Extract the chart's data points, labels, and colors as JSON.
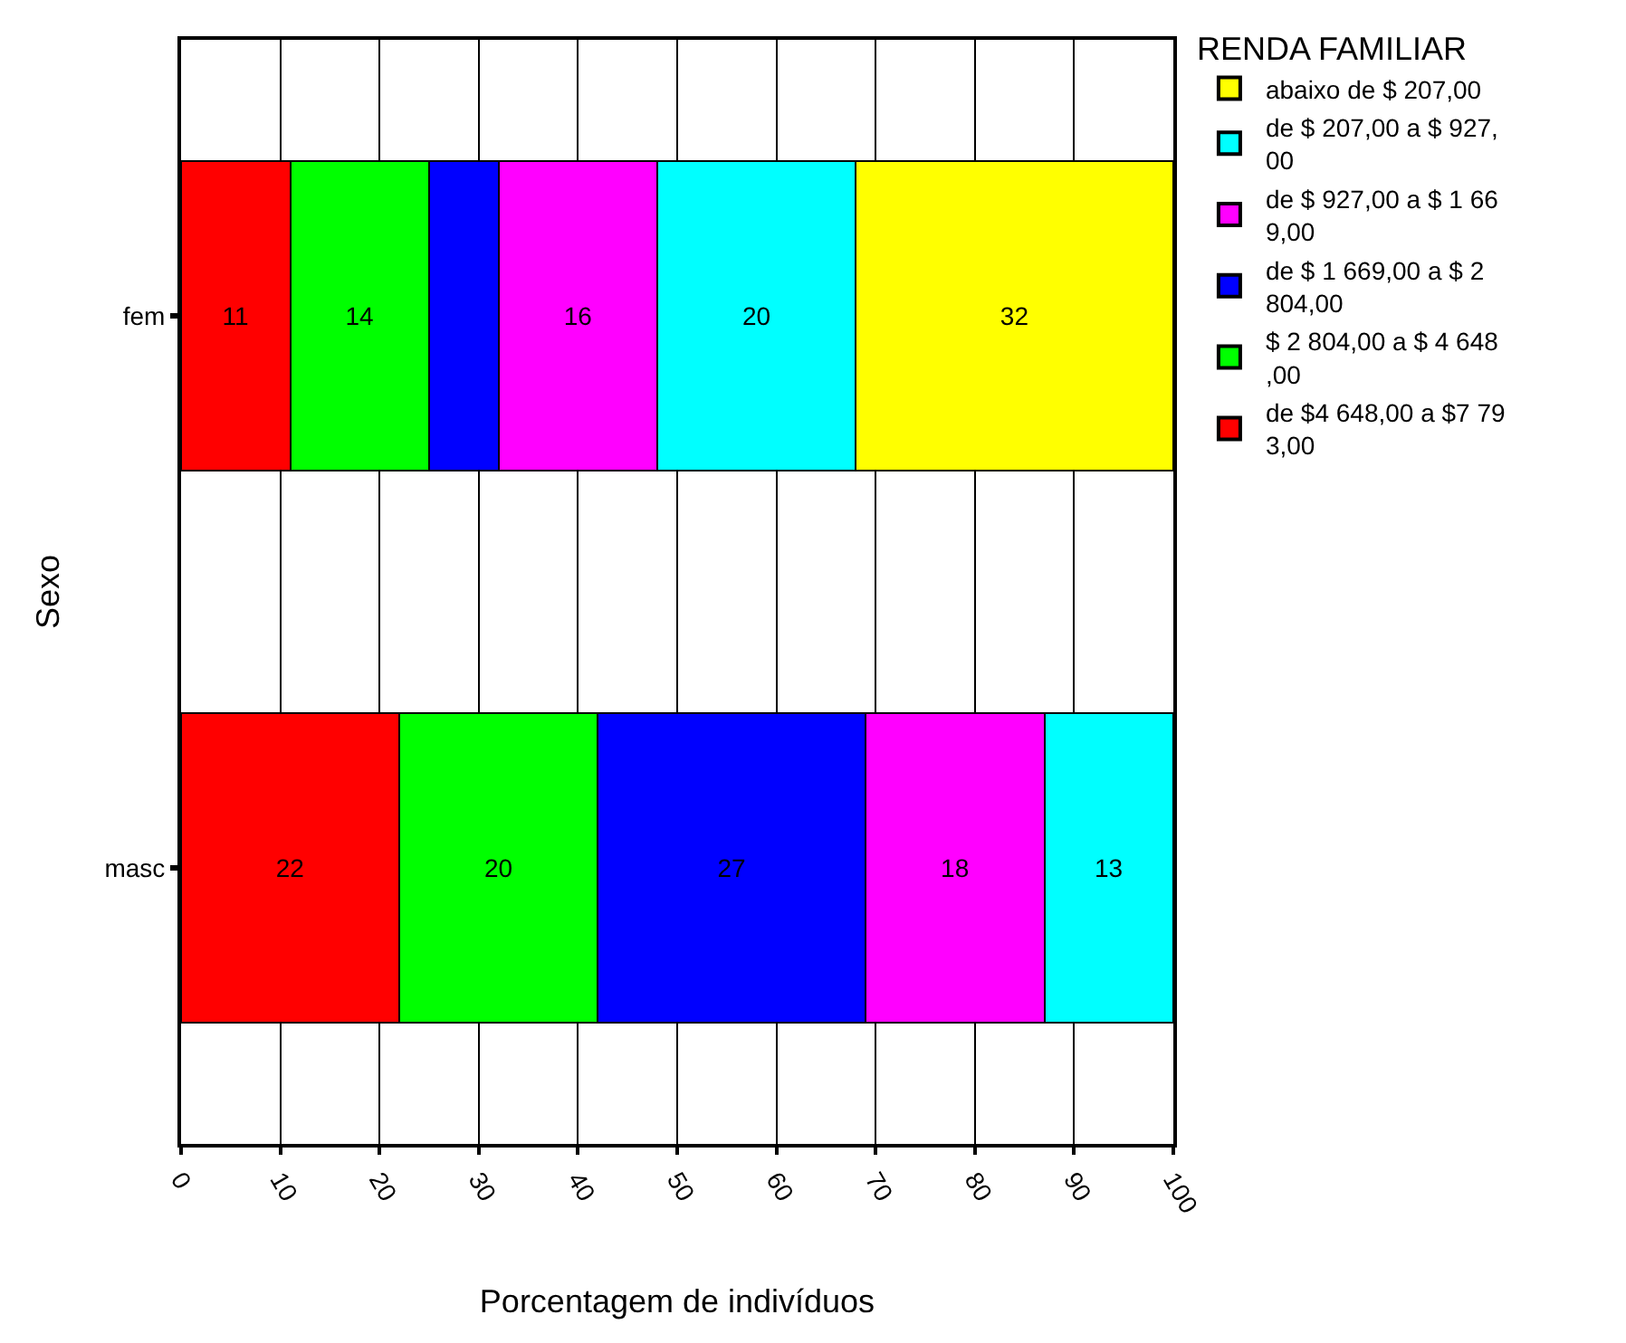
{
  "chart_data": {
    "type": "bar",
    "orientation": "horizontal",
    "stacked": true,
    "xlabel": "Porcentagem de indivíduos",
    "ylabel": "Sexo",
    "legend_title": "RENDA FAMILIAR",
    "legend": "right",
    "grid": "x",
    "categories": [
      "fem",
      "masc"
    ],
    "xlim": [
      0,
      100
    ],
    "xticks": [
      0,
      10,
      20,
      30,
      40,
      50,
      60,
      70,
      80,
      90,
      100
    ],
    "series": [
      {
        "name": "de $4 648,00 a $7 793,00",
        "color": "#ff0000",
        "values": [
          11,
          22
        ],
        "value_labels": [
          "11",
          "22"
        ]
      },
      {
        "name": "$ 2 804,00 a $ 4 648,00",
        "color": "#00ff00",
        "values": [
          14,
          20
        ],
        "value_labels": [
          "14",
          "20"
        ]
      },
      {
        "name": "de $ 1 669,00 a $ 2 804,00",
        "color": "#0000ff",
        "values": [
          7,
          27
        ],
        "value_labels": [
          null,
          "27"
        ]
      },
      {
        "name": "de $ 927,00 a $ 1 669,00",
        "color": "#ff00ff",
        "values": [
          16,
          18
        ],
        "value_labels": [
          "16",
          "18"
        ]
      },
      {
        "name": "de $ 207,00 a $ 927,00",
        "color": "#00ffff",
        "values": [
          20,
          13
        ],
        "value_labels": [
          "20",
          "13"
        ]
      },
      {
        "name": "abaixo de $ 207,00",
        "color": "#ffff00",
        "values": [
          32,
          null
        ],
        "value_labels": [
          "32",
          null
        ]
      }
    ]
  }
}
